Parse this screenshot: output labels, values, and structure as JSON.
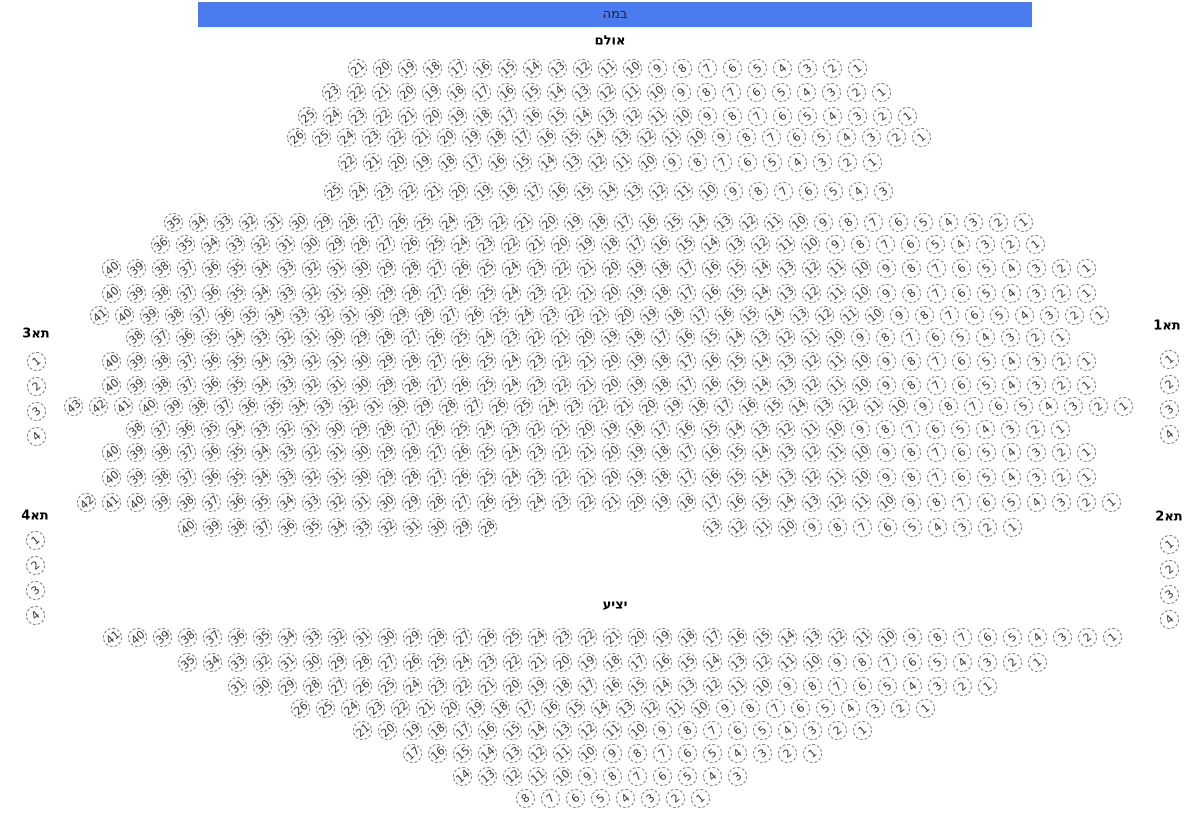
{
  "stage_label": "במה",
  "hall": {
    "label": "אולם",
    "rows": [
      {
        "segments": [
          {
            "from": 21,
            "to": 1
          }
        ]
      },
      {
        "segments": [
          {
            "from": 23,
            "to": 1
          }
        ]
      },
      {
        "segments": [
          {
            "from": 25,
            "to": 1
          }
        ]
      },
      {
        "segments": [
          {
            "from": 26,
            "to": 1
          }
        ]
      },
      {
        "segments": [
          {
            "from": 22,
            "to": 1
          }
        ]
      },
      {
        "segments": [
          {
            "from": 25,
            "to": 3
          }
        ]
      },
      {
        "segments": [
          {
            "from": 35,
            "to": 1
          }
        ]
      },
      {
        "segments": [
          {
            "from": 36,
            "to": 1
          }
        ]
      },
      {
        "segments": [
          {
            "from": 40,
            "to": 1
          }
        ]
      },
      {
        "segments": [
          {
            "from": 40,
            "to": 1
          }
        ]
      },
      {
        "segments": [
          {
            "from": 41,
            "to": 1
          }
        ]
      },
      {
        "segments": [
          {
            "from": 38,
            "to": 1
          }
        ]
      },
      {
        "segments": [
          {
            "from": 40,
            "to": 1
          }
        ]
      },
      {
        "segments": [
          {
            "from": 40,
            "to": 1
          }
        ]
      },
      {
        "segments": [
          {
            "from": 43,
            "to": 1
          }
        ]
      },
      {
        "segments": [
          {
            "from": 38,
            "to": 1
          }
        ]
      },
      {
        "segments": [
          {
            "from": 40,
            "to": 1
          }
        ]
      },
      {
        "segments": [
          {
            "from": 40,
            "to": 1
          }
        ]
      },
      {
        "segments": [
          {
            "from": 42,
            "to": 1
          }
        ]
      },
      {
        "segments": [
          {
            "from": 40,
            "to": 28
          },
          {
            "from": 13,
            "to": 1
          }
        ]
      }
    ]
  },
  "balcony": {
    "label": "יציע",
    "rows": [
      {
        "segments": [
          {
            "from": 41,
            "to": 1
          }
        ]
      },
      {
        "segments": [
          {
            "from": 35,
            "to": 1
          }
        ]
      },
      {
        "segments": [
          {
            "from": 31,
            "to": 1
          }
        ]
      },
      {
        "segments": [
          {
            "from": 26,
            "to": 1
          }
        ]
      },
      {
        "segments": [
          {
            "from": 21,
            "to": 1
          }
        ]
      },
      {
        "segments": [
          {
            "from": 17,
            "to": 1
          }
        ]
      },
      {
        "segments": [
          {
            "from": 14,
            "to": 3
          }
        ]
      },
      {
        "segments": [
          {
            "from": 8,
            "to": 1
          }
        ]
      }
    ]
  },
  "boxes": [
    {
      "label": "תא3",
      "seats": [
        1,
        2,
        3,
        4
      ]
    },
    {
      "label": "תא1",
      "seats": [
        1,
        2,
        3,
        4
      ]
    },
    {
      "label": "תא4",
      "seats": [
        1,
        2,
        3,
        4
      ]
    },
    {
      "label": "תא2",
      "seats": [
        1,
        2,
        3,
        4
      ]
    }
  ],
  "colors": {
    "stage": "#4a7cf0",
    "seat_border": "#777777"
  }
}
